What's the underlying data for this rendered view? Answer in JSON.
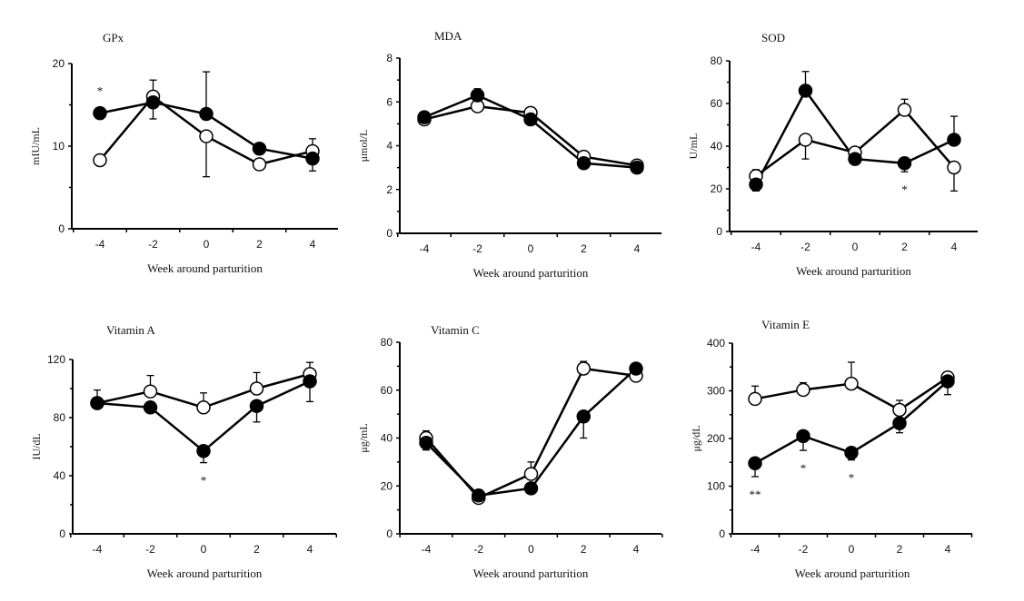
{
  "chart_data": [
    {
      "type": "line",
      "title": "GPx",
      "xlabel": "Week around parturition",
      "ylabel": "mIU/mL",
      "x": [
        -4,
        -2,
        0,
        2,
        4
      ],
      "ylim": [
        0,
        20
      ],
      "yticks": [
        0,
        10,
        20
      ],
      "yminor": [
        5,
        15
      ],
      "series": [
        {
          "marker": "filled",
          "values": [
            14,
            15.3,
            13.9,
            9.7,
            8.5
          ],
          "err_hi": [
            null,
            null,
            19,
            null,
            null
          ],
          "err_lo": [
            null,
            13.3,
            null,
            null,
            7.0
          ]
        },
        {
          "marker": "open",
          "values": [
            8.3,
            16,
            11.2,
            7.8,
            9.4
          ],
          "err_hi": [
            null,
            18,
            null,
            null,
            10.9
          ],
          "err_lo": [
            null,
            null,
            6.3,
            null,
            null
          ]
        }
      ],
      "annotations": [
        {
          "x": -4,
          "text": "*",
          "pos": "above"
        }
      ]
    },
    {
      "type": "line",
      "title": "MDA",
      "xlabel": "Week around parturition",
      "ylabel": "μmol/L",
      "x": [
        -4,
        -2,
        0,
        2,
        4
      ],
      "ylim": [
        0,
        8
      ],
      "yticks": [
        0,
        2,
        4,
        6,
        8
      ],
      "yminor": [
        1,
        3,
        5,
        7
      ],
      "series": [
        {
          "marker": "filled",
          "values": [
            5.3,
            6.3,
            5.2,
            3.2,
            3.0
          ],
          "err_hi": [
            null,
            6.6,
            null,
            null,
            null
          ],
          "err_lo": [
            5.0,
            null,
            null,
            null,
            null
          ]
        },
        {
          "marker": "open",
          "values": [
            5.2,
            5.8,
            5.5,
            3.5,
            3.1
          ],
          "err_hi": [
            null,
            null,
            null,
            null,
            null
          ],
          "err_lo": [
            null,
            null,
            null,
            null,
            null
          ]
        }
      ],
      "annotations": []
    },
    {
      "type": "line",
      "title": "SOD",
      "xlabel": "Week around parturition",
      "ylabel": "U/mL",
      "x": [
        -4,
        -2,
        0,
        2,
        4
      ],
      "ylim": [
        0,
        80
      ],
      "yticks": [
        0,
        20,
        40,
        60,
        80
      ],
      "yminor": [
        10,
        30,
        50,
        70
      ],
      "series": [
        {
          "marker": "filled",
          "values": [
            22,
            66,
            34,
            32,
            43
          ],
          "err_hi": [
            null,
            75,
            null,
            null,
            54
          ],
          "err_lo": [
            19,
            null,
            null,
            28,
            null
          ]
        },
        {
          "marker": "open",
          "values": [
            26,
            43,
            37,
            57,
            30
          ],
          "err_hi": [
            29,
            null,
            null,
            62,
            null
          ],
          "err_lo": [
            null,
            34,
            null,
            null,
            19
          ]
        }
      ],
      "annotations": [
        {
          "x": 2,
          "text": "*",
          "pos": "below"
        }
      ]
    },
    {
      "type": "line",
      "title": "Vitamin A",
      "xlabel": "Week around parturition",
      "ylabel": "IU/dL",
      "x": [
        -4,
        -2,
        0,
        2,
        4
      ],
      "ylim": [
        0,
        120
      ],
      "yticks": [
        0,
        40,
        80,
        120
      ],
      "yminor": [
        20,
        60,
        100
      ],
      "series": [
        {
          "marker": "filled",
          "values": [
            90,
            87,
            57,
            88,
            105
          ],
          "err_hi": [
            null,
            null,
            null,
            null,
            null
          ],
          "err_lo": [
            null,
            null,
            49,
            77,
            91
          ]
        },
        {
          "marker": "open",
          "values": [
            90,
            98,
            87,
            100,
            110
          ],
          "err_hi": [
            99,
            109,
            97,
            111,
            118
          ],
          "err_lo": [
            null,
            null,
            null,
            null,
            null
          ]
        }
      ],
      "annotations": [
        {
          "x": 0,
          "text": "*",
          "pos": "below"
        }
      ]
    },
    {
      "type": "line",
      "title": "Vitamin C",
      "xlabel": "Week around parturition",
      "ylabel": "μg/mL",
      "x": [
        -4,
        -2,
        0,
        2,
        4
      ],
      "ylim": [
        0,
        80
      ],
      "yticks": [
        0,
        20,
        40,
        60,
        80
      ],
      "yminor": [
        10,
        30,
        50,
        70
      ],
      "series": [
        {
          "marker": "filled",
          "values": [
            38,
            16,
            19,
            49,
            69
          ],
          "err_hi": [
            null,
            null,
            null,
            null,
            null
          ],
          "err_lo": [
            35,
            null,
            null,
            40,
            null
          ]
        },
        {
          "marker": "open",
          "values": [
            40,
            15,
            25,
            69,
            66
          ],
          "err_hi": [
            43,
            null,
            30,
            72,
            null
          ],
          "err_lo": [
            null,
            null,
            null,
            null,
            null
          ]
        }
      ],
      "annotations": []
    },
    {
      "type": "line",
      "title": "Vitamin E",
      "xlabel": "Week around parturition",
      "ylabel": "μg/dL",
      "x": [
        -4,
        -2,
        0,
        2,
        4
      ],
      "ylim": [
        0,
        400
      ],
      "yticks": [
        0,
        100,
        200,
        300,
        400
      ],
      "yminor": [
        50,
        150,
        250,
        350
      ],
      "series": [
        {
          "marker": "filled",
          "values": [
            148,
            205,
            170,
            232,
            320
          ],
          "err_hi": [
            null,
            null,
            null,
            null,
            null
          ],
          "err_lo": [
            120,
            175,
            155,
            212,
            292
          ]
        },
        {
          "marker": "open",
          "values": [
            283,
            302,
            315,
            260,
            328
          ],
          "err_hi": [
            310,
            317,
            360,
            280,
            null
          ],
          "err_lo": [
            null,
            null,
            null,
            null,
            null
          ]
        }
      ],
      "annotations": [
        {
          "x": -4,
          "text": "**",
          "pos": "below"
        },
        {
          "x": -2,
          "text": "*",
          "pos": "below"
        },
        {
          "x": 0,
          "text": "*",
          "pos": "below"
        }
      ]
    }
  ]
}
